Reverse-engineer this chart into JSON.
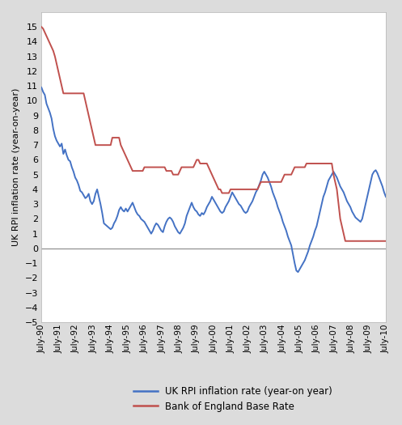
{
  "ylabel": "UK RPI inflation rate (year-on-year)",
  "ylim": [
    -5,
    16
  ],
  "yticks": [
    -5,
    -4,
    -3,
    -2,
    -1,
    0,
    1,
    2,
    3,
    4,
    5,
    6,
    7,
    8,
    9,
    10,
    11,
    12,
    13,
    14,
    15
  ],
  "xtick_labels": [
    "July-90",
    "July-91",
    "July-92",
    "July-93",
    "July-94",
    "July-95",
    "July-96",
    "July-97",
    "July-98",
    "July-99",
    "July-00",
    "July-01",
    "July-02",
    "July-03",
    "July-04",
    "July-05",
    "July-06",
    "July-07",
    "July-08",
    "July-09",
    "July-10"
  ],
  "rpi_color": "#4472C4",
  "boe_color": "#C0504D",
  "line_width": 1.4,
  "legend_rpi": "UK RPI inflation rate (year-on year)",
  "legend_boe": "Bank of England Base Rate",
  "background_color": "#ffffff",
  "fig_bg_color": "#dcdcdc",
  "rpi_data": [
    10.9,
    10.6,
    10.4,
    9.8,
    9.5,
    9.2,
    8.8,
    8.1,
    7.6,
    7.3,
    7.1,
    6.9,
    7.1,
    6.4,
    6.7,
    6.3,
    6.0,
    5.9,
    5.5,
    5.2,
    4.8,
    4.6,
    4.3,
    3.9,
    3.8,
    3.6,
    3.4,
    3.5,
    3.7,
    3.2,
    3.0,
    3.2,
    3.7,
    4.0,
    3.5,
    3.0,
    2.4,
    1.7,
    1.6,
    1.5,
    1.4,
    1.3,
    1.4,
    1.7,
    1.9,
    2.2,
    2.6,
    2.8,
    2.6,
    2.5,
    2.7,
    2.5,
    2.7,
    2.9,
    3.1,
    2.8,
    2.5,
    2.3,
    2.2,
    2.0,
    1.9,
    1.8,
    1.6,
    1.4,
    1.2,
    1.0,
    1.2,
    1.5,
    1.7,
    1.6,
    1.4,
    1.2,
    1.1,
    1.5,
    1.8,
    2.0,
    2.1,
    2.0,
    1.8,
    1.5,
    1.3,
    1.1,
    1.0,
    1.2,
    1.4,
    1.7,
    2.2,
    2.5,
    2.8,
    3.1,
    2.8,
    2.6,
    2.5,
    2.3,
    2.2,
    2.4,
    2.3,
    2.5,
    2.8,
    3.0,
    3.2,
    3.5,
    3.3,
    3.1,
    2.9,
    2.7,
    2.5,
    2.4,
    2.5,
    2.8,
    3.0,
    3.2,
    3.5,
    3.8,
    3.6,
    3.4,
    3.2,
    3.0,
    2.9,
    2.7,
    2.5,
    2.4,
    2.5,
    2.8,
    3.0,
    3.2,
    3.5,
    3.8,
    4.0,
    4.3,
    4.6,
    5.0,
    5.2,
    5.0,
    4.8,
    4.5,
    4.2,
    3.8,
    3.5,
    3.2,
    2.8,
    2.5,
    2.2,
    1.8,
    1.5,
    1.2,
    0.8,
    0.5,
    0.2,
    -0.4,
    -1.0,
    -1.5,
    -1.6,
    -1.4,
    -1.2,
    -1.0,
    -0.8,
    -0.5,
    -0.2,
    0.2,
    0.5,
    0.8,
    1.2,
    1.5,
    2.0,
    2.5,
    3.0,
    3.5,
    3.8,
    4.2,
    4.6,
    4.8,
    5.0,
    5.2,
    5.0,
    4.8,
    4.5,
    4.2,
    4.0,
    3.8,
    3.5,
    3.2,
    3.0,
    2.8,
    2.5,
    2.3,
    2.1,
    2.0,
    1.9,
    1.8,
    2.0,
    2.5,
    3.0,
    3.5,
    4.0,
    4.5,
    5.0,
    5.2,
    5.3,
    5.1,
    4.8,
    4.5,
    4.2,
    3.8,
    3.5
  ],
  "boe_data": [
    15.0,
    14.88,
    14.63,
    14.38,
    14.13,
    13.88,
    13.63,
    13.38,
    13.0,
    12.5,
    12.0,
    11.5,
    11.0,
    10.5,
    10.5,
    10.5,
    10.5,
    10.5,
    10.5,
    10.5,
    10.5,
    10.5,
    10.5,
    10.5,
    10.5,
    10.5,
    10.0,
    9.5,
    9.0,
    8.5,
    8.0,
    7.5,
    7.0,
    7.0,
    7.0,
    7.0,
    7.0,
    7.0,
    7.0,
    7.0,
    7.0,
    7.0,
    7.5,
    7.5,
    7.5,
    7.5,
    7.5,
    7.0,
    6.75,
    6.5,
    6.25,
    6.0,
    5.75,
    5.5,
    5.25,
    5.25,
    5.25,
    5.25,
    5.25,
    5.25,
    5.25,
    5.5,
    5.5,
    5.5,
    5.5,
    5.5,
    5.5,
    5.5,
    5.5,
    5.5,
    5.5,
    5.5,
    5.5,
    5.5,
    5.25,
    5.25,
    5.25,
    5.25,
    5.0,
    5.0,
    5.0,
    5.0,
    5.25,
    5.5,
    5.5,
    5.5,
    5.5,
    5.5,
    5.5,
    5.5,
    5.5,
    5.75,
    6.0,
    6.0,
    5.75,
    5.75,
    5.75,
    5.75,
    5.75,
    5.5,
    5.25,
    5.0,
    4.75,
    4.5,
    4.25,
    4.0,
    4.0,
    3.75,
    3.75,
    3.75,
    3.75,
    3.75,
    4.0,
    4.0,
    4.0,
    4.0,
    4.0,
    4.0,
    4.0,
    4.0,
    4.0,
    4.0,
    4.0,
    4.0,
    4.0,
    4.0,
    4.0,
    4.0,
    4.0,
    4.25,
    4.5,
    4.5,
    4.5,
    4.5,
    4.5,
    4.5,
    4.5,
    4.5,
    4.5,
    4.5,
    4.5,
    4.5,
    4.5,
    4.75,
    5.0,
    5.0,
    5.0,
    5.0,
    5.0,
    5.25,
    5.5,
    5.5,
    5.5,
    5.5,
    5.5,
    5.5,
    5.5,
    5.75,
    5.75,
    5.75,
    5.75,
    5.75,
    5.75,
    5.75,
    5.75,
    5.75,
    5.75,
    5.75,
    5.75,
    5.75,
    5.75,
    5.75,
    5.75,
    5.0,
    4.5,
    4.0,
    3.0,
    2.0,
    1.5,
    1.0,
    0.5,
    0.5,
    0.5,
    0.5,
    0.5,
    0.5,
    0.5,
    0.5,
    0.5,
    0.5,
    0.5,
    0.5,
    0.5,
    0.5,
    0.5,
    0.5,
    0.5,
    0.5,
    0.5,
    0.5,
    0.5,
    0.5,
    0.5,
    0.5,
    0.5
  ]
}
